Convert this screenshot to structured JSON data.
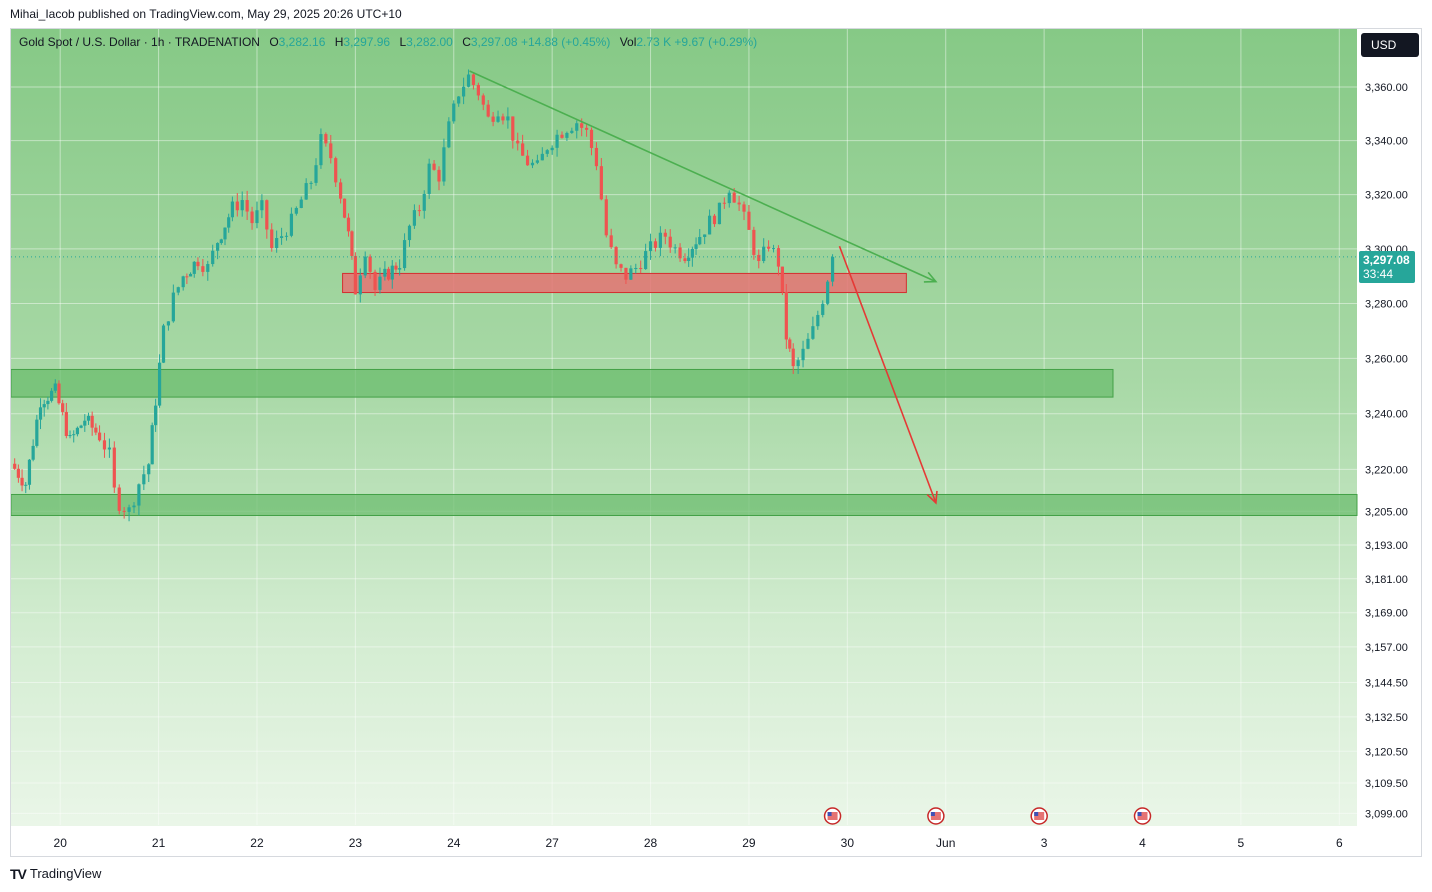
{
  "header": {
    "publisher_line": "Mihai_Iacob published on TradingView.com, May 29, 2025 20:26 UTC+10"
  },
  "legend": {
    "symbol": "Gold Spot / U.S. Dollar · 1h · TRADENATION",
    "o_label": "O",
    "o_value": "3,282.16",
    "h_label": "H",
    "h_value": "3,297.96",
    "l_label": "L",
    "l_value": "3,282.00",
    "c_label": "C",
    "c_value": "3,297.08",
    "change": "+14.88 (+0.45%)",
    "vol_label": "Vol",
    "vol_value": "2.73 K",
    "vol_change": "+9.67 (+0.29%)"
  },
  "currency_button": "USD",
  "last_price": {
    "value": "3,297.08",
    "countdown": "33:44"
  },
  "footer": {
    "brand": "TradingView"
  },
  "colors": {
    "up": "#26a69a",
    "down": "#ef5350",
    "zone_red": "#e57373",
    "zone_green": "#66bb6a",
    "trendline": "#4caf50",
    "projection": "#e53935"
  },
  "chart_data": {
    "type": "candlestick",
    "title": "Gold Spot / U.S. Dollar",
    "timeframe": "1h",
    "currency": "USD",
    "y_scale": "log",
    "ylim": [
      3095,
      3372
    ],
    "y_ticks": [
      "3,360.00",
      "3,340.00",
      "3,320.00",
      "3,300.00",
      "3,280.00",
      "3,260.00",
      "3,240.00",
      "3,220.00",
      "3,205.00",
      "3,193.00",
      "3,181.00",
      "3,169.00",
      "3,157.00",
      "3,144.50",
      "3,132.50",
      "3,120.50",
      "3,109.50",
      "3,099.00"
    ],
    "y_tick_values": [
      3360,
      3340,
      3320,
      3300,
      3280,
      3260,
      3240,
      3220,
      3205,
      3193,
      3181,
      3169,
      3157,
      3144.5,
      3132.5,
      3120.5,
      3109.5,
      3099
    ],
    "x_ticks": [
      "20",
      "21",
      "22",
      "23",
      "24",
      "27",
      "28",
      "29",
      "30",
      "Jun",
      "3",
      "4",
      "5",
      "6"
    ],
    "x_tick_days": [
      0,
      1,
      2,
      3,
      4,
      5,
      6,
      7,
      8,
      9,
      10,
      11,
      12,
      13
    ],
    "x_range_days": [
      -0.5,
      13.18
    ],
    "ohlc_anchor_path": [
      [
        -0.5,
        3222
      ],
      [
        -0.35,
        3215
      ],
      [
        -0.2,
        3245
      ],
      [
        -0.05,
        3248
      ],
      [
        0.1,
        3230
      ],
      [
        0.25,
        3238
      ],
      [
        0.4,
        3232
      ],
      [
        0.5,
        3225
      ],
      [
        0.55,
        3212
      ],
      [
        0.6,
        3208
      ],
      [
        0.7,
        3205
      ],
      [
        0.8,
        3215
      ],
      [
        0.9,
        3222
      ],
      [
        0.97,
        3245
      ],
      [
        1.05,
        3270
      ],
      [
        1.15,
        3282
      ],
      [
        1.25,
        3290
      ],
      [
        1.4,
        3296
      ],
      [
        1.5,
        3293
      ],
      [
        1.6,
        3303
      ],
      [
        1.75,
        3315
      ],
      [
        1.85,
        3318
      ],
      [
        1.95,
        3310
      ],
      [
        2.05,
        3315
      ],
      [
        2.15,
        3300
      ],
      [
        2.25,
        3305
      ],
      [
        2.35,
        3310
      ],
      [
        2.45,
        3318
      ],
      [
        2.55,
        3325
      ],
      [
        2.65,
        3340
      ],
      [
        2.75,
        3334
      ],
      [
        2.85,
        3320
      ],
      [
        2.93,
        3305
      ],
      [
        3.0,
        3285
      ],
      [
        3.1,
        3300
      ],
      [
        3.2,
        3285
      ],
      [
        3.3,
        3290
      ],
      [
        3.45,
        3295
      ],
      [
        3.55,
        3308
      ],
      [
        3.65,
        3315
      ],
      [
        3.75,
        3330
      ],
      [
        3.85,
        3327
      ],
      [
        3.95,
        3345
      ],
      [
        4.05,
        3358
      ],
      [
        4.15,
        3364
      ],
      [
        4.25,
        3358
      ],
      [
        4.35,
        3348
      ],
      [
        4.45,
        3352
      ],
      [
        4.55,
        3348
      ],
      [
        4.65,
        3336
      ],
      [
        4.75,
        3332
      ],
      [
        4.85,
        3330
      ],
      [
        4.95,
        3338
      ],
      [
        5.05,
        3342
      ],
      [
        5.15,
        3345
      ],
      [
        5.25,
        3347
      ],
      [
        5.35,
        3343
      ],
      [
        5.45,
        3332
      ],
      [
        5.55,
        3305
      ],
      [
        5.65,
        3293
      ],
      [
        5.75,
        3290
      ],
      [
        5.85,
        3293
      ],
      [
        5.95,
        3298
      ],
      [
        6.05,
        3302
      ],
      [
        6.15,
        3305
      ],
      [
        6.25,
        3300
      ],
      [
        6.35,
        3298
      ],
      [
        6.5,
        3305
      ],
      [
        6.6,
        3310
      ],
      [
        6.7,
        3314
      ],
      [
        6.8,
        3323
      ],
      [
        6.9,
        3316
      ],
      [
        7.0,
        3306
      ],
      [
        7.1,
        3294
      ],
      [
        7.2,
        3302
      ],
      [
        7.3,
        3295
      ],
      [
        7.38,
        3268
      ],
      [
        7.45,
        3256
      ],
      [
        7.55,
        3262
      ],
      [
        7.65,
        3270
      ],
      [
        7.75,
        3282
      ],
      [
        7.85,
        3297.08
      ]
    ],
    "zones": [
      {
        "type": "resistance",
        "color": "red",
        "x_start_day": 2.87,
        "x_end_day": 8.6,
        "y_low": 3284,
        "y_high": 3291
      },
      {
        "type": "support",
        "color": "green",
        "x_start_day": -0.5,
        "x_end_day": 10.7,
        "y_low": 3246,
        "y_high": 3256
      },
      {
        "type": "support",
        "color": "green",
        "x_start_day": -0.5,
        "x_end_day": 13.18,
        "y_low": 3203.5,
        "y_high": 3211
      }
    ],
    "lines": [
      {
        "type": "trendline",
        "color": "green",
        "from": {
          "day": 4.16,
          "price": 3366
        },
        "to": {
          "day": 8.9,
          "price": 3288
        },
        "arrow": true
      },
      {
        "type": "projection",
        "color": "red",
        "from": {
          "day": 7.92,
          "price": 3301
        },
        "to": {
          "day": 8.9,
          "price": 3208
        },
        "arrow": true
      }
    ],
    "last_price_line": 3297.08,
    "event_markers_days": [
      7.85,
      8.9,
      9.95,
      11.0
    ]
  }
}
